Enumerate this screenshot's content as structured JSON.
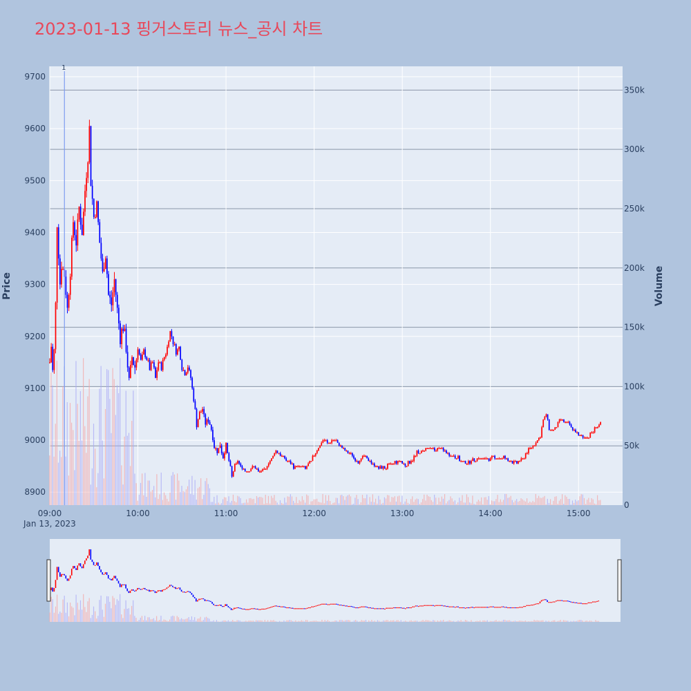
{
  "chart_data": {
    "type": "candlestick",
    "title": "2023-01-13 핑거스토리 뉴스_공시 차트",
    "ylabel": "Price",
    "y2label": "Volume",
    "date_label": "Jan 13, 2023",
    "y_ticks": [
      "8900",
      "9000",
      "9100",
      "9200",
      "9300",
      "9400",
      "9500",
      "9600",
      "9700"
    ],
    "y_tick_values": [
      8900,
      9000,
      9100,
      9200,
      9300,
      9400,
      9500,
      9600,
      9700
    ],
    "ylim": [
      8875,
      9720
    ],
    "y2_ticks": [
      "0",
      "50k",
      "100k",
      "150k",
      "200k",
      "250k",
      "300k",
      "350k"
    ],
    "y2_tick_values": [
      0,
      50000,
      100000,
      150000,
      200000,
      250000,
      300000,
      350000
    ],
    "y2lim": [
      0,
      370000
    ],
    "x_ticks": [
      "09:00",
      "10:00",
      "11:00",
      "12:00",
      "13:00",
      "14:00",
      "15:00"
    ],
    "x_tick_values": [
      "09:00",
      "10:00",
      "11:00",
      "12:00",
      "13:00",
      "14:00",
      "15:00"
    ],
    "xlim": [
      "09:00",
      "15:30"
    ],
    "up_color": "#ff0000",
    "down_color": "#0000ff",
    "annotation": {
      "label": "1",
      "time": "09:10"
    },
    "price_path": [
      [
        "09:00",
        9150
      ],
      [
        "09:01",
        9180
      ],
      [
        "09:02",
        9130
      ],
      [
        "09:03",
        9170
      ],
      [
        "09:04",
        9260
      ],
      [
        "09:05",
        9420
      ],
      [
        "09:06",
        9360
      ],
      [
        "09:07",
        9300
      ],
      [
        "09:08",
        9340
      ],
      [
        "09:10",
        9320
      ],
      [
        "09:12",
        9250
      ],
      [
        "09:14",
        9330
      ],
      [
        "09:16",
        9420
      ],
      [
        "09:18",
        9380
      ],
      [
        "09:20",
        9450
      ],
      [
        "09:22",
        9400
      ],
      [
        "09:24",
        9480
      ],
      [
        "09:26",
        9550
      ],
      [
        "09:27",
        9600
      ],
      [
        "09:28",
        9500
      ],
      [
        "09:30",
        9430
      ],
      [
        "09:32",
        9450
      ],
      [
        "09:34",
        9380
      ],
      [
        "09:36",
        9320
      ],
      [
        "09:38",
        9360
      ],
      [
        "09:40",
        9280
      ],
      [
        "09:42",
        9260
      ],
      [
        "09:44",
        9310
      ],
      [
        "09:46",
        9250
      ],
      [
        "09:48",
        9200
      ],
      [
        "09:50",
        9220
      ],
      [
        "09:52",
        9180
      ],
      [
        "09:54",
        9110
      ],
      [
        "09:56",
        9160
      ],
      [
        "09:58",
        9140
      ],
      [
        "10:00",
        9180
      ],
      [
        "10:02",
        9150
      ],
      [
        "10:04",
        9170
      ],
      [
        "10:06",
        9160
      ],
      [
        "10:08",
        9140
      ],
      [
        "10:10",
        9150
      ],
      [
        "10:12",
        9120
      ],
      [
        "10:14",
        9150
      ],
      [
        "10:16",
        9140
      ],
      [
        "10:18",
        9160
      ],
      [
        "10:20",
        9180
      ],
      [
        "10:22",
        9210
      ],
      [
        "10:24",
        9190
      ],
      [
        "10:26",
        9170
      ],
      [
        "10:28",
        9180
      ],
      [
        "10:30",
        9140
      ],
      [
        "10:32",
        9130
      ],
      [
        "10:34",
        9140
      ],
      [
        "10:36",
        9120
      ],
      [
        "10:38",
        9080
      ],
      [
        "10:40",
        9030
      ],
      [
        "10:42",
        9050
      ],
      [
        "10:44",
        9060
      ],
      [
        "10:46",
        9030
      ],
      [
        "10:48",
        9040
      ],
      [
        "10:50",
        9020
      ],
      [
        "10:52",
        8990
      ],
      [
        "10:54",
        8980
      ],
      [
        "10:56",
        8990
      ],
      [
        "10:58",
        8970
      ],
      [
        "11:00",
        8990
      ],
      [
        "11:02",
        8960
      ],
      [
        "11:04",
        8930
      ],
      [
        "11:06",
        8950
      ],
      [
        "11:08",
        8960
      ],
      [
        "11:10",
        8950
      ],
      [
        "11:14",
        8940
      ],
      [
        "11:18",
        8950
      ],
      [
        "11:22",
        8940
      ],
      [
        "11:26",
        8940
      ],
      [
        "11:30",
        8960
      ],
      [
        "11:34",
        8980
      ],
      [
        "11:38",
        8970
      ],
      [
        "11:42",
        8960
      ],
      [
        "11:46",
        8950
      ],
      [
        "11:50",
        8950
      ],
      [
        "11:54",
        8945
      ],
      [
        "11:58",
        8960
      ],
      [
        "12:02",
        8980
      ],
      [
        "12:06",
        9000
      ],
      [
        "12:10",
        8995
      ],
      [
        "12:14",
        9000
      ],
      [
        "12:18",
        8990
      ],
      [
        "12:22",
        8980
      ],
      [
        "12:26",
        8970
      ],
      [
        "12:30",
        8960
      ],
      [
        "12:34",
        8970
      ],
      [
        "12:38",
        8960
      ],
      [
        "12:42",
        8950
      ],
      [
        "12:46",
        8945
      ],
      [
        "12:50",
        8950
      ],
      [
        "12:54",
        8955
      ],
      [
        "12:58",
        8960
      ],
      [
        "13:02",
        8950
      ],
      [
        "13:06",
        8960
      ],
      [
        "13:10",
        8975
      ],
      [
        "13:14",
        8980
      ],
      [
        "13:18",
        8985
      ],
      [
        "13:22",
        8980
      ],
      [
        "13:26",
        8985
      ],
      [
        "13:30",
        8975
      ],
      [
        "13:34",
        8970
      ],
      [
        "13:38",
        8965
      ],
      [
        "13:42",
        8955
      ],
      [
        "13:46",
        8960
      ],
      [
        "13:50",
        8965
      ],
      [
        "13:54",
        8965
      ],
      [
        "13:58",
        8965
      ],
      [
        "14:02",
        8965
      ],
      [
        "14:06",
        8968
      ],
      [
        "14:10",
        8965
      ],
      [
        "14:14",
        8960
      ],
      [
        "14:18",
        8955
      ],
      [
        "14:22",
        8965
      ],
      [
        "14:26",
        8980
      ],
      [
        "14:30",
        8990
      ],
      [
        "14:34",
        9010
      ],
      [
        "14:36",
        9040
      ],
      [
        "14:38",
        9050
      ],
      [
        "14:40",
        9020
      ],
      [
        "14:44",
        9020
      ],
      [
        "14:48",
        9040
      ],
      [
        "14:52",
        9035
      ],
      [
        "14:56",
        9020
      ],
      [
        "15:00",
        9010
      ],
      [
        "15:04",
        9005
      ],
      [
        "15:08",
        9010
      ],
      [
        "15:12",
        9025
      ],
      [
        "15:15",
        9030
      ]
    ]
  }
}
